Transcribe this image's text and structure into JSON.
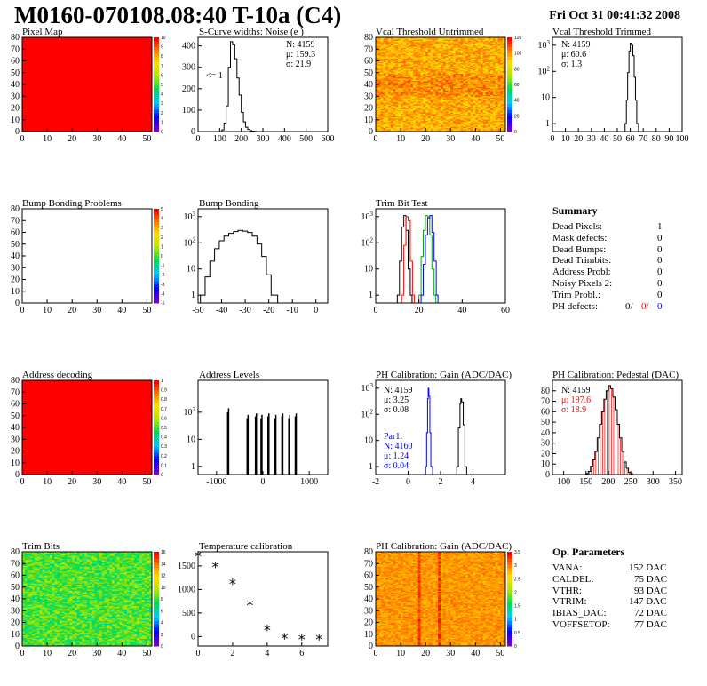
{
  "header": {
    "title": "M0160-070108.08:40 T-10a (C4)",
    "date": "Fri Oct 31 00:41:32 2008"
  },
  "panels": {
    "pixel_map": {
      "title": "Pixel Map"
    },
    "scurve": {
      "title": "S-Curve widths: Noise (e )",
      "stats": [
        "N: 4159",
        "μ: 159.3",
        "σ: 21.9"
      ],
      "note": "<= 1"
    },
    "vcal_untrimmed": {
      "title": "Vcal Threshold Untrimmed"
    },
    "vcal_trimmed": {
      "title": "Vcal Threshold Trimmed",
      "stats": [
        "N: 4159",
        "μ: 60.6",
        "σ: 1.3"
      ]
    },
    "bump_problems": {
      "title": "Bump Bonding Problems"
    },
    "bump_bonding": {
      "title": "Bump Bonding"
    },
    "trim_bit_test": {
      "title": "Trim Bit Test"
    },
    "address_decoding": {
      "title": "Address decoding"
    },
    "address_levels": {
      "title": "Address Levels"
    },
    "ph_gain": {
      "title": "PH Calibration: Gain (ADC/DAC)",
      "stats": [
        "N: 4159",
        "μ: 3.25",
        "σ: 0.08"
      ],
      "par_title": "Par1:",
      "par_stats": [
        "N: 4160",
        "μ: 1.24",
        "σ: 0.04"
      ]
    },
    "ph_pedestal": {
      "title": "PH Calibration: Pedestal (DAC)",
      "stats": [
        "N: 4159",
        "μ: 197.6",
        "σ: 18.9"
      ]
    },
    "trim_bits": {
      "title": "Trim Bits"
    },
    "temperature": {
      "title": "Temperature calibration"
    },
    "ph_gain_map": {
      "title": "PH Calibration: Gain (ADC/DAC)"
    }
  },
  "summary": {
    "title": "Summary",
    "rows": [
      {
        "label": "Dead Pixels:",
        "value": "1"
      },
      {
        "label": "Mask defects:",
        "value": "0"
      },
      {
        "label": "Dead Bumps:",
        "value": "0"
      },
      {
        "label": "Dead Trimbits:",
        "value": "0"
      },
      {
        "label": "Address Probl:",
        "value": "0"
      },
      {
        "label": "Noisy Pixels 2:",
        "value": "0"
      },
      {
        "label": "Trim Probl.:",
        "value": "0"
      }
    ],
    "ph_defects": {
      "label": "PH defects:",
      "v1": "0/",
      "v2": "0/",
      "v3": "0"
    }
  },
  "op_params": {
    "title": "Op. Parameters",
    "rows": [
      {
        "label": "VANA:",
        "value": "152 DAC"
      },
      {
        "label": "CALDEL:",
        "value": "75 DAC"
      },
      {
        "label": "VTHR:",
        "value": "93 DAC"
      },
      {
        "label": "VTRIM:",
        "value": "147 DAC"
      },
      {
        "label": "IBIAS_DAC:",
        "value": "72 DAC"
      },
      {
        "label": "VOFFSETOP:",
        "value": "77 DAC"
      }
    ]
  },
  "chart_data": [
    {
      "type": "heatmap",
      "title": "Pixel Map",
      "xlim": [
        0,
        52
      ],
      "ylim": [
        0,
        80
      ],
      "xticks": [
        0,
        10,
        20,
        30,
        40,
        50
      ],
      "yticks": [
        0,
        10,
        20,
        30,
        40,
        50,
        60,
        70,
        80
      ],
      "fill": "uniform-max",
      "zticks": [
        0,
        1,
        2,
        3,
        4,
        5,
        6,
        7,
        8,
        9,
        10
      ]
    },
    {
      "type": "line",
      "title": "S-Curve widths: Noise (e )",
      "xlim": [
        0,
        600
      ],
      "ylim": [
        0,
        440
      ],
      "xticks": [
        0,
        100,
        200,
        300,
        400,
        500,
        600
      ],
      "yticks": [
        0,
        100,
        200,
        300,
        400
      ],
      "x": [
        100,
        110,
        120,
        130,
        140,
        150,
        160,
        170,
        180,
        190,
        200,
        210,
        220,
        230,
        240,
        250,
        260,
        270
      ],
      "y": [
        0,
        8,
        40,
        120,
        300,
        420,
        405,
        340,
        250,
        170,
        90,
        45,
        20,
        10,
        4,
        2,
        1,
        0
      ]
    },
    {
      "type": "heatmap",
      "title": "Vcal Threshold Untrimmed",
      "xlim": [
        0,
        52
      ],
      "ylim": [
        0,
        80
      ],
      "xticks": [
        0,
        10,
        20,
        30,
        40,
        50
      ],
      "yticks": [
        0,
        10,
        20,
        30,
        40,
        50,
        60,
        70,
        80
      ],
      "zticks": [
        0,
        20,
        40,
        60,
        80,
        100,
        120
      ]
    },
    {
      "type": "line",
      "title": "Vcal Threshold Trimmed",
      "log_y": true,
      "xlim": [
        0,
        100
      ],
      "ylim": [
        0.5,
        2000
      ],
      "xticks": [
        0,
        10,
        20,
        30,
        40,
        50,
        60,
        70,
        80,
        90,
        100
      ],
      "yticks": [
        1,
        10,
        100,
        1000
      ],
      "x": [
        56,
        57,
        58,
        59,
        60,
        61,
        62,
        63,
        64,
        65
      ],
      "y": [
        1,
        8,
        90,
        600,
        1200,
        1000,
        400,
        60,
        8,
        1
      ]
    },
    {
      "type": "heatmap",
      "title": "Bump Bonding Problems",
      "xlim": [
        0,
        52
      ],
      "ylim": [
        0,
        80
      ],
      "xticks": [
        0,
        10,
        20,
        30,
        40,
        50
      ],
      "yticks": [
        0,
        10,
        20,
        30,
        40,
        50,
        60,
        70,
        80
      ],
      "fill": "empty",
      "zticks": [
        -5,
        -4,
        -3,
        -2,
        -1,
        0,
        1,
        2,
        3,
        4,
        5
      ]
    },
    {
      "type": "line",
      "title": "Bump Bonding",
      "log_y": true,
      "xlim": [
        -50,
        5
      ],
      "ylim": [
        0.5,
        2000
      ],
      "xticks": [
        -50,
        -40,
        -30,
        -20,
        -10,
        0
      ],
      "yticks": [
        1,
        10,
        100,
        1000
      ],
      "x": [
        -49,
        -47,
        -45,
        -43,
        -41,
        -39,
        -37,
        -35,
        -33,
        -31,
        -29,
        -27,
        -25,
        -23,
        -21,
        -19,
        -17
      ],
      "y": [
        1,
        5,
        20,
        60,
        120,
        180,
        230,
        270,
        300,
        280,
        250,
        180,
        90,
        30,
        6,
        1,
        1
      ]
    },
    {
      "type": "line",
      "title": "Trim Bit Test",
      "log_y": true,
      "xlim": [
        0,
        60
      ],
      "ylim": [
        0.5,
        2000
      ],
      "xticks": [
        0,
        20,
        40,
        60
      ],
      "yticks": [
        1,
        10,
        100,
        1000
      ],
      "series": [
        {
          "color": "#000000",
          "x": [
            10,
            11,
            12,
            13,
            14,
            15,
            16
          ],
          "y": [
            1,
            20,
            400,
            1100,
            300,
            10,
            1
          ]
        },
        {
          "color": "#ff0000",
          "x": [
            12,
            13,
            14,
            15,
            16,
            17
          ],
          "y": [
            1,
            80,
            1000,
            700,
            20,
            1
          ]
        },
        {
          "color": "#00aa00",
          "x": [
            20,
            21,
            22,
            23,
            24,
            25,
            26,
            27
          ],
          "y": [
            1,
            30,
            300,
            1100,
            1000,
            200,
            10,
            1
          ]
        },
        {
          "color": "#0000ff",
          "x": [
            21,
            22,
            23,
            24,
            25,
            26,
            27,
            28
          ],
          "y": [
            1,
            15,
            200,
            900,
            1100,
            250,
            20,
            1
          ]
        }
      ]
    },
    {
      "type": "heatmap",
      "title": "Address decoding",
      "xlim": [
        0,
        52
      ],
      "ylim": [
        0,
        80
      ],
      "xticks": [
        0,
        10,
        20,
        30,
        40,
        50
      ],
      "yticks": [
        0,
        10,
        20,
        30,
        40,
        50,
        60,
        70,
        80
      ],
      "fill": "uniform-max",
      "zticks": [
        0,
        0.1,
        0.2,
        0.3,
        0.4,
        0.5,
        0.6,
        0.7,
        0.8,
        0.9,
        1
      ]
    },
    {
      "type": "bar",
      "title": "Address Levels",
      "log_y": true,
      "xlim": [
        -1400,
        1400
      ],
      "ylim": [
        0.5,
        1500
      ],
      "xticks": [
        -1000,
        0,
        1000
      ],
      "yticks": [
        1,
        10,
        100
      ],
      "x": [
        -760,
        -740,
        -340,
        -320,
        -160,
        -140,
        -40,
        -20,
        110,
        130,
        260,
        280,
        410,
        430,
        560,
        580,
        700,
        720
      ],
      "values": [
        100,
        140,
        60,
        80,
        70,
        90,
        60,
        80,
        70,
        90,
        60,
        80,
        70,
        90,
        60,
        80,
        70,
        90
      ]
    },
    {
      "type": "line",
      "title": "PH Calibration: Gain (ADC/DAC)",
      "log_y": true,
      "xlim": [
        -2,
        6
      ],
      "ylim": [
        0.5,
        2000
      ],
      "xticks": [
        -2,
        0,
        2,
        4
      ],
      "yticks": [
        1,
        10,
        100,
        1000
      ],
      "series": [
        {
          "color": "#0000ff",
          "x": [
            1.08,
            1.14,
            1.2,
            1.24,
            1.28,
            1.34,
            1.4
          ],
          "y": [
            1,
            20,
            400,
            1000,
            500,
            20,
            1
          ]
        },
        {
          "color": "#000000",
          "x": [
            3.0,
            3.1,
            3.2,
            3.25,
            3.3,
            3.4,
            3.5
          ],
          "y": [
            1,
            30,
            250,
            400,
            300,
            40,
            1
          ]
        }
      ]
    },
    {
      "type": "line",
      "title": "PH Calibration: Pedestal (DAC)",
      "xlim": [
        75,
        365
      ],
      "ylim": [
        0,
        90
      ],
      "xticks": [
        100,
        150,
        200,
        250,
        300,
        350
      ],
      "yticks": [
        0,
        10,
        20,
        30,
        40,
        50,
        60,
        70,
        80
      ],
      "x": [
        150,
        155,
        160,
        165,
        170,
        175,
        180,
        185,
        190,
        195,
        200,
        205,
        210,
        215,
        220,
        225,
        230,
        235,
        240,
        245,
        250
      ],
      "y": [
        1,
        3,
        8,
        14,
        22,
        35,
        48,
        60,
        72,
        80,
        85,
        82,
        74,
        62,
        48,
        35,
        22,
        12,
        6,
        2,
        1
      ],
      "fit_color": "#ff0000"
    },
    {
      "type": "heatmap",
      "title": "Trim Bits",
      "xlim": [
        0,
        52
      ],
      "ylim": [
        0,
        80
      ],
      "xticks": [
        0,
        10,
        20,
        30,
        40,
        50
      ],
      "yticks": [
        0,
        10,
        20,
        30,
        40,
        50,
        60,
        70,
        80
      ],
      "zticks": [
        0,
        2,
        4,
        6,
        8,
        10,
        12,
        14,
        16
      ]
    },
    {
      "type": "scatter",
      "title": "Temperature calibration",
      "xlim": [
        0,
        7.5
      ],
      "ylim": [
        -200,
        1800
      ],
      "xticks": [
        0,
        2,
        4,
        6
      ],
      "yticks": [
        0,
        500,
        1000,
        1500
      ],
      "x": [
        0,
        1,
        2,
        3,
        4,
        5,
        6,
        7
      ],
      "y": [
        1720,
        1490,
        1130,
        680,
        150,
        -30,
        -50,
        -50
      ]
    },
    {
      "type": "heatmap",
      "title": "PH Calibration: Gain (ADC/DAC)",
      "xlim": [
        0,
        52
      ],
      "ylim": [
        0,
        80
      ],
      "xticks": [
        0,
        10,
        20,
        30,
        40,
        50
      ],
      "yticks": [
        0,
        10,
        20,
        30,
        40,
        50,
        60,
        70,
        80
      ],
      "zticks": [
        0,
        0.5,
        1,
        1.5,
        2,
        2.5,
        3,
        3.5
      ]
    }
  ]
}
